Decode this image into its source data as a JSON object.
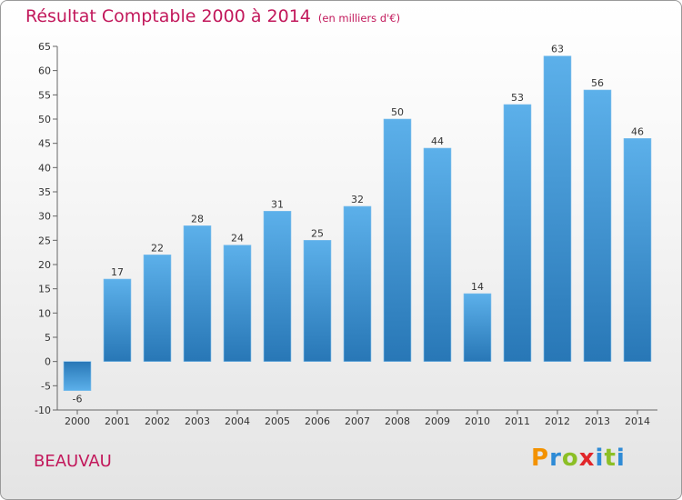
{
  "chart_data": {
    "type": "bar",
    "title": "Résultat Comptable 2000 à 2014",
    "subtitle": "(en milliers d'€)",
    "categories": [
      "2000",
      "2001",
      "2002",
      "2003",
      "2004",
      "2005",
      "2006",
      "2007",
      "2008",
      "2009",
      "2010",
      "2011",
      "2012",
      "2013",
      "2014"
    ],
    "values": [
      -6,
      17,
      22,
      28,
      24,
      31,
      25,
      32,
      50,
      44,
      14,
      53,
      63,
      56,
      46
    ],
    "value_labels": [
      "-6",
      "17",
      "22",
      "28",
      "24",
      "31",
      "25",
      "32",
      "50",
      "44",
      "14",
      "53",
      "63",
      "56",
      "46"
    ],
    "y_ticks": [
      "-10",
      "-5",
      "0",
      "5",
      "10",
      "15",
      "20",
      "25",
      "30",
      "35",
      "40",
      "45",
      "50",
      "55",
      "60",
      "65"
    ],
    "ylim": [
      -10,
      65
    ],
    "xlabel": "",
    "ylabel": "",
    "grid": false,
    "bar_color": "#4a9fdc",
    "bar_color_dark": "#2a7abb"
  },
  "footer": {
    "commune": "BEAUVAU",
    "logo": {
      "p": "P",
      "r": "r",
      "o": "o",
      "x": "x",
      "i": "i",
      "t": "t",
      "i2": "i"
    }
  }
}
